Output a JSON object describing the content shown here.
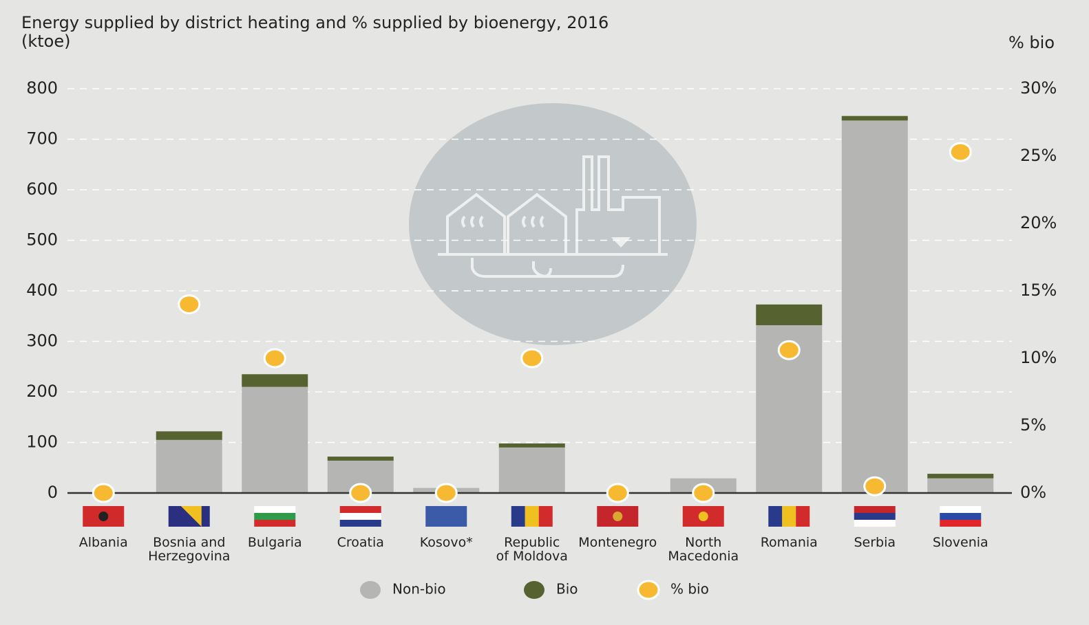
{
  "chart_data": {
    "type": "bar",
    "title": "Energy supplied by district heating and % supplied by bioenergy, 2016",
    "y_label": "(ktoe)",
    "y2_label": "% bio",
    "stacked": true,
    "categories": [
      "Albania",
      "Bosnia and\nHerzegovina",
      "Bulgaria",
      "Croatia",
      "Kosovo*",
      "Republic\nof Moldova",
      "Montenegro",
      "North\nMacedonia",
      "Romania",
      "Serbia",
      "Slovenia"
    ],
    "series": [
      {
        "name": "Non-bio",
        "color": "#b5b6b4",
        "values": [
          0,
          105,
          210,
          64,
          10,
          90,
          0,
          29,
          332,
          737,
          29
        ]
      },
      {
        "name": "Bio",
        "color": "#56622f",
        "values": [
          0,
          17,
          25,
          8,
          0,
          8,
          0,
          0,
          41,
          9,
          9
        ]
      },
      {
        "name": "% bio",
        "color": "#f8b932",
        "type": "scatter",
        "axis": "y2",
        "values": [
          0,
          14,
          10,
          0,
          0,
          10,
          0,
          0,
          10.6,
          0.5,
          25.3
        ]
      }
    ],
    "ylim": [
      0,
      800
    ],
    "yticks": [
      0,
      100,
      200,
      300,
      400,
      500,
      600,
      700,
      800
    ],
    "y2lim": [
      0,
      30
    ],
    "y2ticks": [
      {
        "value": 0,
        "label": "0%"
      },
      {
        "value": 5,
        "label": "5%"
      },
      {
        "value": 10,
        "label": "10%"
      },
      {
        "value": 15,
        "label": "15%"
      },
      {
        "value": 20,
        "label": "20%"
      },
      {
        "value": 25,
        "label": "25%"
      },
      {
        "value": 30,
        "label": "30%"
      }
    ],
    "grid": true,
    "legend": "bottom"
  }
}
